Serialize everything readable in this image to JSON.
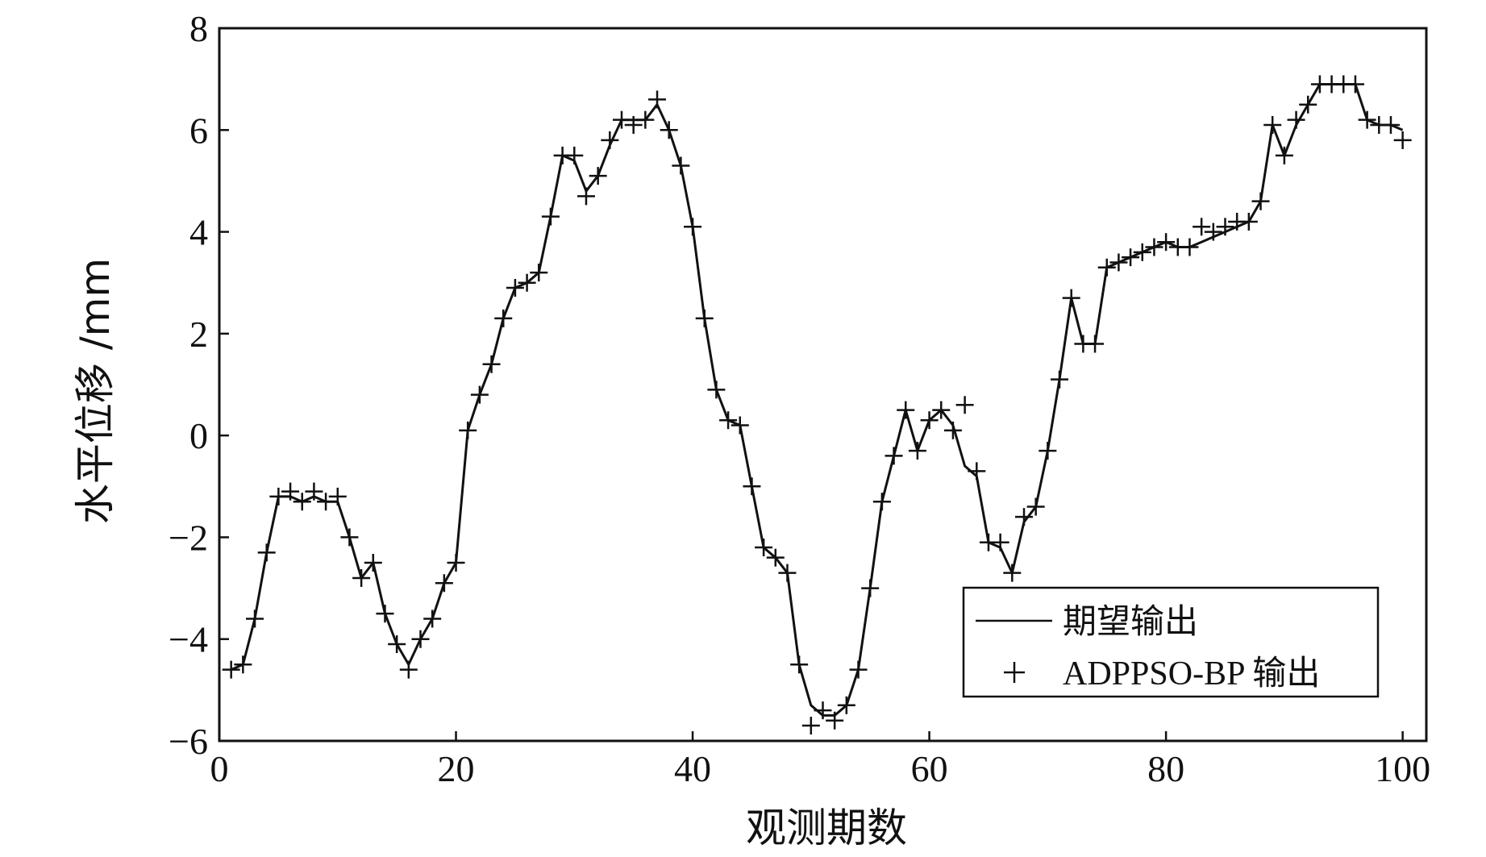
{
  "chart_data": {
    "type": "line",
    "xlabel": "观测期数",
    "ylabel": "水平位移 /mm",
    "xlim": [
      0,
      102
    ],
    "ylim": [
      -6,
      8
    ],
    "xticks": [
      0,
      20,
      40,
      60,
      80,
      100
    ],
    "yticks": [
      -6,
      -4,
      -2,
      0,
      2,
      4,
      6,
      8
    ],
    "x_tick_labels": [
      "0",
      "20",
      "40",
      "60",
      "80",
      "100"
    ],
    "y_tick_labels": [
      "−6",
      "−4",
      "−2",
      "0",
      "2",
      "4",
      "6",
      "8"
    ],
    "grid": false,
    "legend_position": "bottom-right",
    "colors": {
      "line": "#111111",
      "marker": "#111111",
      "axes": "#111111"
    },
    "x": [
      1,
      2,
      3,
      4,
      5,
      6,
      7,
      8,
      9,
      10,
      11,
      12,
      13,
      14,
      15,
      16,
      17,
      18,
      19,
      20,
      21,
      22,
      23,
      24,
      25,
      26,
      27,
      28,
      29,
      30,
      31,
      32,
      33,
      34,
      35,
      36,
      37,
      38,
      39,
      40,
      41,
      42,
      43,
      44,
      45,
      46,
      47,
      48,
      49,
      50,
      51,
      52,
      53,
      54,
      55,
      56,
      57,
      58,
      59,
      60,
      61,
      62,
      63,
      64,
      65,
      66,
      67,
      68,
      69,
      70,
      71,
      72,
      73,
      74,
      75,
      76,
      77,
      78,
      79,
      80,
      81,
      82,
      83,
      84,
      85,
      86,
      87,
      88,
      89,
      90,
      91,
      92,
      93,
      94,
      95,
      96,
      97,
      98,
      99,
      100
    ],
    "series": [
      {
        "name": "期望输出",
        "style": "line",
        "values": [
          -4.6,
          -4.5,
          -3.6,
          -2.3,
          -1.2,
          -1.2,
          -1.3,
          -1.2,
          -1.3,
          -1.3,
          -2.0,
          -2.8,
          -2.5,
          -3.5,
          -4.1,
          -4.5,
          -4.0,
          -3.6,
          -2.9,
          -2.5,
          0.1,
          0.8,
          1.4,
          2.3,
          2.9,
          3.0,
          3.2,
          4.3,
          5.5,
          5.4,
          4.8,
          5.1,
          5.7,
          6.2,
          6.2,
          6.2,
          6.5,
          6.0,
          5.3,
          4.1,
          2.3,
          0.9,
          0.3,
          0.2,
          -1.0,
          -2.2,
          -2.4,
          -2.7,
          -4.5,
          -5.3,
          -5.5,
          -5.5,
          -5.3,
          -4.6,
          -3.0,
          -1.3,
          -0.4,
          0.5,
          -0.3,
          0.3,
          0.5,
          0.2,
          -0.6,
          -0.8,
          -2.1,
          -2.2,
          -2.7,
          -1.7,
          -1.4,
          -0.3,
          1.1,
          2.7,
          1.8,
          1.8,
          3.3,
          3.4,
          3.5,
          3.6,
          3.7,
          3.8,
          3.7,
          3.7,
          3.8,
          3.9,
          4.0,
          4.1,
          4.2,
          4.6,
          6.1,
          5.5,
          6.1,
          6.5,
          6.9,
          6.9,
          6.9,
          6.9,
          6.2,
          6.1,
          6.1,
          6.0
        ]
      },
      {
        "name": "ADPPSO-BP 输出",
        "style": "plus",
        "values": [
          -4.6,
          -4.5,
          -3.6,
          -2.3,
          -1.2,
          -1.1,
          -1.3,
          -1.1,
          -1.3,
          -1.2,
          -2.0,
          -2.8,
          -2.5,
          -3.5,
          -4.1,
          -4.6,
          -4.0,
          -3.6,
          -2.9,
          -2.5,
          0.1,
          0.8,
          1.4,
          2.3,
          2.9,
          3.0,
          3.2,
          4.3,
          5.5,
          5.5,
          4.7,
          5.1,
          5.8,
          6.2,
          6.1,
          6.2,
          6.6,
          6.0,
          5.3,
          4.1,
          2.3,
          0.9,
          0.3,
          0.2,
          -1.0,
          -2.2,
          -2.4,
          -2.7,
          -4.5,
          -5.7,
          -5.4,
          -5.6,
          -5.3,
          -4.6,
          -3.0,
          -1.3,
          -0.4,
          0.5,
          -0.3,
          0.3,
          0.5,
          0.1,
          0.6,
          -0.7,
          -2.1,
          -2.1,
          -2.7,
          -1.6,
          -1.4,
          -0.3,
          1.1,
          2.7,
          1.8,
          1.8,
          3.3,
          3.4,
          3.5,
          3.6,
          3.7,
          3.8,
          3.7,
          3.7,
          4.1,
          4.0,
          4.1,
          4.2,
          4.2,
          4.6,
          6.1,
          5.5,
          6.2,
          6.5,
          6.9,
          6.9,
          6.9,
          6.9,
          6.2,
          6.1,
          6.1,
          5.8
        ]
      }
    ]
  }
}
